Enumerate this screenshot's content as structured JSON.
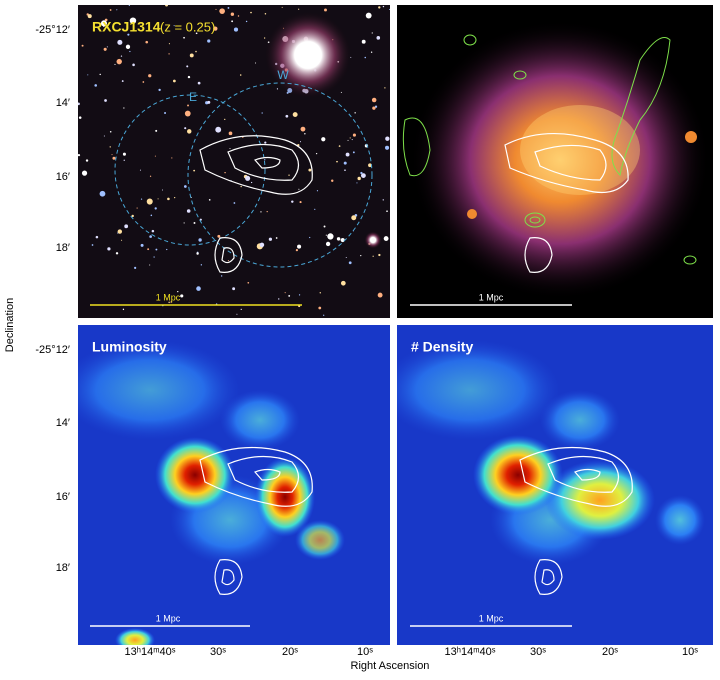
{
  "panels": [
    {
      "title": "RXCJ1314",
      "subtitle": "(z = 0.25)",
      "circle_labels": [
        "E",
        "W"
      ],
      "scale_label": "1 Mpc"
    },
    {
      "scale_label": "1 Mpc"
    },
    {
      "title": "Luminosity",
      "scale_label": "1 Mpc"
    },
    {
      "title": "# Density",
      "scale_label": "1 Mpc"
    }
  ],
  "y_axis": {
    "label": "Declination",
    "ticks": [
      "-25°12′",
      "14′",
      "16′",
      "18′"
    ]
  },
  "x_axis": {
    "label": "Right Ascension",
    "ticks": [
      "13ʰ14ᵐ40ˢ",
      "30ˢ",
      "20ˢ",
      "10ˢ"
    ]
  }
}
